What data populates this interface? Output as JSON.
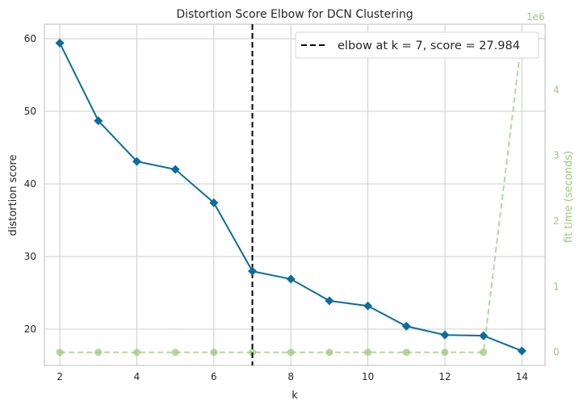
{
  "chart_data": {
    "type": "line",
    "title": "Distortion Score Elbow for DCN Clustering",
    "xlabel": "k",
    "ylabel": "distortion score",
    "y2label": "fit time (seconds)",
    "y2_offset_label": "1e6",
    "xlim": [
      1.6,
      14.6
    ],
    "ylim": [
      15,
      62
    ],
    "y2lim": [
      -0.2,
      5.0
    ],
    "x_ticks": [
      2,
      4,
      6,
      8,
      10,
      12,
      14
    ],
    "y_ticks": [
      20,
      30,
      40,
      50,
      60
    ],
    "y2_ticks": [
      0,
      1,
      2,
      3,
      4
    ],
    "grid": true,
    "legend_position": "top-right",
    "legend": [
      "elbow at k = 7, score = 27.984"
    ],
    "elbow": {
      "k": 7,
      "score": 27.984
    },
    "series": [
      {
        "name": "distortion score",
        "axis": "left",
        "color": "#0a6d9e",
        "marker": "diamond",
        "x": [
          2,
          3,
          4,
          5,
          6,
          7,
          8,
          9,
          10,
          11,
          12,
          13,
          14
        ],
        "y": [
          59.4,
          48.7,
          43.1,
          42.0,
          37.4,
          27.98,
          26.9,
          23.9,
          23.2,
          20.4,
          19.2,
          19.1,
          17.0
        ]
      },
      {
        "name": "fit time (seconds)",
        "axis": "right",
        "color": "#9ec87e",
        "marker": "circle",
        "x": [
          2,
          3,
          4,
          5,
          6,
          7,
          8,
          9,
          10,
          11,
          12,
          13,
          14
        ],
        "y": [
          0,
          0,
          0,
          0,
          0,
          0,
          0,
          0,
          0,
          0,
          0,
          0,
          4.8
        ]
      }
    ]
  },
  "colors": {
    "primary": "#0a6d9e",
    "secondary": "#9ec87e",
    "elbow_line": "#000000",
    "grid": "#cccccc",
    "axes_edge": "#bdbdbd"
  }
}
